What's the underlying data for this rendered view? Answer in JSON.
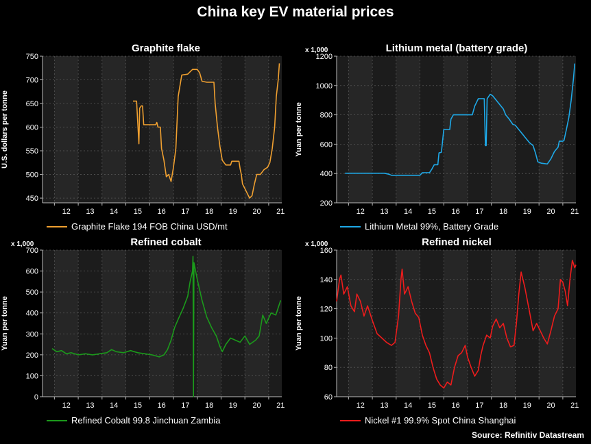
{
  "title": "China key EV material prices",
  "source": "Source: Refinitiv Datastream",
  "chart_data": [
    {
      "id": "graphite",
      "type": "line",
      "title": "Graphite flake",
      "ylabel": "U.S. dollars per tonne",
      "yunit": "",
      "ylim": [
        440,
        750
      ],
      "yticks": [
        450,
        500,
        550,
        600,
        650,
        700,
        750
      ],
      "xlim": [
        2011.5,
        2021.55
      ],
      "xticks": [
        "12",
        "13",
        "14",
        "15",
        "16",
        "17",
        "18",
        "19",
        "20",
        "21"
      ],
      "grid": true,
      "color": "#f0a030",
      "series": [
        {
          "name": "Graphite Flake 194 FOB China USD/mt",
          "points": [
            [
              2015.3,
              655
            ],
            [
              2015.45,
              655
            ],
            [
              2015.5,
              610
            ],
            [
              2015.55,
              565
            ],
            [
              2015.58,
              640
            ],
            [
              2015.65,
              645
            ],
            [
              2015.7,
              645
            ],
            [
              2015.75,
              605
            ],
            [
              2016.0,
              605
            ],
            [
              2016.25,
              605
            ],
            [
              2016.3,
              610
            ],
            [
              2016.35,
              600
            ],
            [
              2016.45,
              600
            ],
            [
              2016.5,
              555
            ],
            [
              2016.6,
              530
            ],
            [
              2016.7,
              495
            ],
            [
              2016.8,
              500
            ],
            [
              2016.9,
              485
            ],
            [
              2017.0,
              515
            ],
            [
              2017.1,
              555
            ],
            [
              2017.2,
              665
            ],
            [
              2017.35,
              710
            ],
            [
              2017.6,
              712
            ],
            [
              2017.8,
              722
            ],
            [
              2018.0,
              722
            ],
            [
              2018.1,
              715
            ],
            [
              2018.2,
              697
            ],
            [
              2018.4,
              695
            ],
            [
              2018.7,
              695
            ],
            [
              2018.75,
              650
            ],
            [
              2018.85,
              600
            ],
            [
              2018.95,
              560
            ],
            [
              2019.05,
              530
            ],
            [
              2019.2,
              520
            ],
            [
              2019.4,
              520
            ],
            [
              2019.45,
              528
            ],
            [
              2019.75,
              528
            ],
            [
              2019.8,
              512
            ],
            [
              2019.85,
              500
            ],
            [
              2019.9,
              480
            ],
            [
              2020.0,
              470
            ],
            [
              2020.1,
              460
            ],
            [
              2020.2,
              450
            ],
            [
              2020.3,
              455
            ],
            [
              2020.4,
              480
            ],
            [
              2020.5,
              500
            ],
            [
              2020.65,
              500
            ],
            [
              2020.8,
              510
            ],
            [
              2020.95,
              515
            ],
            [
              2021.05,
              525
            ],
            [
              2021.15,
              555
            ],
            [
              2021.25,
              600
            ],
            [
              2021.32,
              665
            ],
            [
              2021.4,
              700
            ],
            [
              2021.45,
              735
            ]
          ]
        }
      ]
    },
    {
      "id": "lithium",
      "type": "line",
      "title": "Lithium metal (battery grade)",
      "ylabel": "Yuan per tonne",
      "yunit": "x 1,000",
      "ylim": [
        200,
        1200
      ],
      "yticks": [
        200,
        400,
        600,
        800,
        1000,
        1200
      ],
      "xlim": [
        2011.5,
        2021.55
      ],
      "xticks": [
        "12",
        "13",
        "14",
        "15",
        "16",
        "17",
        "18",
        "19",
        "20",
        "21"
      ],
      "grid": true,
      "color": "#1ea9e8",
      "series": [
        {
          "name": "Lithium Metal 99%, Battery Grade",
          "points": [
            [
              2011.85,
              402
            ],
            [
              2012.5,
              402
            ],
            [
              2013.0,
              402
            ],
            [
              2013.5,
              402
            ],
            [
              2013.7,
              395
            ],
            [
              2013.8,
              388
            ],
            [
              2014.5,
              388
            ],
            [
              2015.0,
              388
            ],
            [
              2015.1,
              405
            ],
            [
              2015.4,
              405
            ],
            [
              2015.5,
              430
            ],
            [
              2015.6,
              460
            ],
            [
              2015.75,
              460
            ],
            [
              2015.8,
              540
            ],
            [
              2015.9,
              545
            ],
            [
              2016.0,
              700
            ],
            [
              2016.25,
              700
            ],
            [
              2016.3,
              770
            ],
            [
              2016.4,
              800
            ],
            [
              2017.0,
              800
            ],
            [
              2017.2,
              800
            ],
            [
              2017.3,
              860
            ],
            [
              2017.45,
              910
            ],
            [
              2017.7,
              910
            ],
            [
              2017.75,
              590
            ],
            [
              2017.78,
              590
            ],
            [
              2017.82,
              910
            ],
            [
              2017.95,
              940
            ],
            [
              2018.05,
              930
            ],
            [
              2018.25,
              890
            ],
            [
              2018.35,
              870
            ],
            [
              2018.5,
              840
            ],
            [
              2018.6,
              800
            ],
            [
              2018.75,
              770
            ],
            [
              2018.9,
              735
            ],
            [
              2019.0,
              730
            ],
            [
              2019.2,
              690
            ],
            [
              2019.4,
              650
            ],
            [
              2019.5,
              630
            ],
            [
              2019.6,
              610
            ],
            [
              2019.75,
              590
            ],
            [
              2019.85,
              540
            ],
            [
              2019.95,
              480
            ],
            [
              2020.1,
              470
            ],
            [
              2020.35,
              465
            ],
            [
              2020.5,
              500
            ],
            [
              2020.65,
              550
            ],
            [
              2020.8,
              580
            ],
            [
              2020.85,
              620
            ],
            [
              2021.0,
              620
            ],
            [
              2021.05,
              625
            ],
            [
              2021.15,
              700
            ],
            [
              2021.25,
              780
            ],
            [
              2021.35,
              900
            ],
            [
              2021.45,
              1050
            ],
            [
              2021.5,
              1150
            ]
          ]
        }
      ]
    },
    {
      "id": "cobalt",
      "type": "line",
      "title": "Refined cobalt",
      "ylabel": "Yuan per tonne",
      "yunit": "x 1,000",
      "ylim": [
        0,
        700
      ],
      "yticks": [
        0,
        100,
        200,
        300,
        400,
        500,
        600,
        700
      ],
      "xlim": [
        2011.5,
        2021.55
      ],
      "xticks": [
        "12",
        "13",
        "14",
        "15",
        "16",
        "17",
        "18",
        "19",
        "20",
        "21"
      ],
      "grid": true,
      "color": "#1b9a1b",
      "series": [
        {
          "name": "Refined Cobalt 99.8 Jinchuan Zambia",
          "points": [
            [
              2011.9,
              230
            ],
            [
              2012.1,
              215
            ],
            [
              2012.3,
              220
            ],
            [
              2012.5,
              205
            ],
            [
              2012.7,
              210
            ],
            [
              2013.0,
              200
            ],
            [
              2013.3,
              205
            ],
            [
              2013.6,
              200
            ],
            [
              2013.9,
              205
            ],
            [
              2014.2,
              210
            ],
            [
              2014.4,
              225
            ],
            [
              2014.6,
              215
            ],
            [
              2014.9,
              210
            ],
            [
              2015.2,
              220
            ],
            [
              2015.5,
              210
            ],
            [
              2015.8,
              205
            ],
            [
              2016.1,
              200
            ],
            [
              2016.4,
              190
            ],
            [
              2016.6,
              200
            ],
            [
              2016.75,
              225
            ],
            [
              2016.9,
              270
            ],
            [
              2017.05,
              330
            ],
            [
              2017.2,
              370
            ],
            [
              2017.4,
              420
            ],
            [
              2017.6,
              480
            ],
            [
              2017.7,
              550
            ],
            [
              2017.8,
              600
            ],
            [
              2017.82,
              670
            ],
            [
              2017.84,
              0
            ],
            [
              2017.86,
              640
            ],
            [
              2018.0,
              560
            ],
            [
              2018.2,
              460
            ],
            [
              2018.4,
              380
            ],
            [
              2018.6,
              330
            ],
            [
              2018.8,
              290
            ],
            [
              2018.95,
              240
            ],
            [
              2019.05,
              215
            ],
            [
              2019.2,
              250
            ],
            [
              2019.4,
              280
            ],
            [
              2019.6,
              270
            ],
            [
              2019.8,
              260
            ],
            [
              2020.0,
              290
            ],
            [
              2020.2,
              250
            ],
            [
              2020.45,
              270
            ],
            [
              2020.6,
              290
            ],
            [
              2020.75,
              390
            ],
            [
              2020.9,
              350
            ],
            [
              2021.1,
              400
            ],
            [
              2021.3,
              390
            ],
            [
              2021.5,
              460
            ]
          ]
        }
      ]
    },
    {
      "id": "nickel",
      "type": "line",
      "title": "Refined nickel",
      "ylabel": "Yuan per tonne",
      "yunit": "x 1,000",
      "ylim": [
        60,
        160
      ],
      "yticks": [
        60,
        80,
        100,
        120,
        140,
        160
      ],
      "xlim": [
        2011.5,
        2021.55
      ],
      "xticks": [
        "12",
        "13",
        "14",
        "15",
        "16",
        "17",
        "18",
        "19",
        "20",
        "21"
      ],
      "grid": true,
      "color": "#ee1c1c",
      "series": [
        {
          "name": "Nickel #1 99.9% Spot China Shanghai",
          "points": [
            [
              2011.5,
              125
            ],
            [
              2011.62,
              140
            ],
            [
              2011.68,
              143
            ],
            [
              2011.8,
              130
            ],
            [
              2011.95,
              135
            ],
            [
              2012.1,
              122
            ],
            [
              2012.25,
              118
            ],
            [
              2012.35,
              130
            ],
            [
              2012.5,
              125
            ],
            [
              2012.65,
              115
            ],
            [
              2012.8,
              122
            ],
            [
              2013.0,
              112
            ],
            [
              2013.2,
              103
            ],
            [
              2013.4,
              100
            ],
            [
              2013.6,
              97
            ],
            [
              2013.8,
              95
            ],
            [
              2013.95,
              97
            ],
            [
              2014.1,
              115
            ],
            [
              2014.2,
              140
            ],
            [
              2014.25,
              147
            ],
            [
              2014.35,
              130
            ],
            [
              2014.5,
              135
            ],
            [
              2014.65,
              125
            ],
            [
              2014.8,
              117
            ],
            [
              2014.95,
              114
            ],
            [
              2015.1,
              102
            ],
            [
              2015.25,
              95
            ],
            [
              2015.4,
              90
            ],
            [
              2015.55,
              80
            ],
            [
              2015.7,
              72
            ],
            [
              2015.85,
              68
            ],
            [
              2016.0,
              66
            ],
            [
              2016.15,
              70
            ],
            [
              2016.3,
              68
            ],
            [
              2016.45,
              80
            ],
            [
              2016.6,
              88
            ],
            [
              2016.75,
              90
            ],
            [
              2016.9,
              95
            ],
            [
              2017.0,
              87
            ],
            [
              2017.15,
              80
            ],
            [
              2017.3,
              74
            ],
            [
              2017.45,
              78
            ],
            [
              2017.55,
              88
            ],
            [
              2017.65,
              95
            ],
            [
              2017.8,
              102
            ],
            [
              2017.95,
              100
            ],
            [
              2018.05,
              108
            ],
            [
              2018.2,
              113
            ],
            [
              2018.35,
              107
            ],
            [
              2018.5,
              110
            ],
            [
              2018.65,
              100
            ],
            [
              2018.8,
              94
            ],
            [
              2018.95,
              95
            ],
            [
              2019.05,
              110
            ],
            [
              2019.15,
              130
            ],
            [
              2019.25,
              145
            ],
            [
              2019.4,
              135
            ],
            [
              2019.6,
              118
            ],
            [
              2019.75,
              105
            ],
            [
              2019.9,
              110
            ],
            [
              2020.05,
              105
            ],
            [
              2020.2,
              100
            ],
            [
              2020.35,
              96
            ],
            [
              2020.5,
              105
            ],
            [
              2020.65,
              115
            ],
            [
              2020.8,
              120
            ],
            [
              2020.9,
              140
            ],
            [
              2021.0,
              138
            ],
            [
              2021.1,
              132
            ],
            [
              2021.2,
              122
            ],
            [
              2021.3,
              140
            ],
            [
              2021.4,
              153
            ],
            [
              2021.5,
              148
            ],
            [
              2021.55,
              150
            ]
          ]
        }
      ]
    }
  ]
}
